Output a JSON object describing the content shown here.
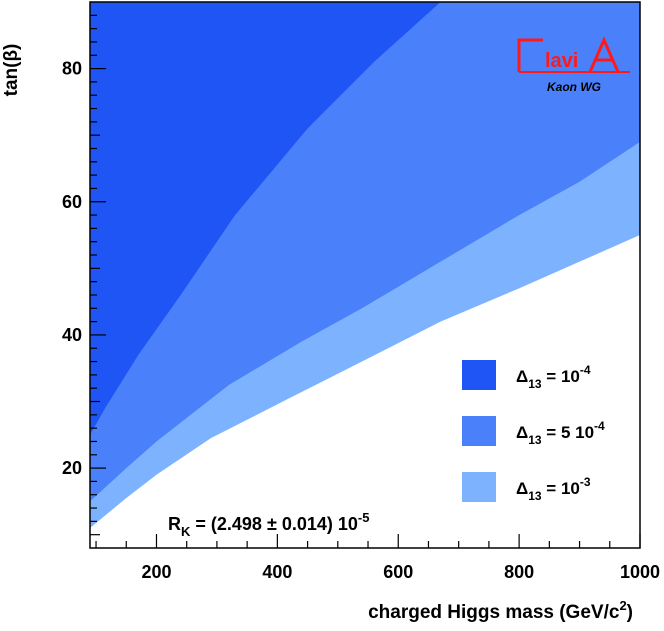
{
  "chart_data": {
    "type": "area",
    "title": "",
    "xlabel": "charged Higgs mass (GeV/c",
    "xlabel_sup": "2",
    "xlabel_tail": ")",
    "ylabel": "tan(β)",
    "xlim": [
      90,
      1000
    ],
    "ylim": [
      8,
      90
    ],
    "x_ticks": [
      200,
      400,
      600,
      800,
      1000
    ],
    "y_ticks": [
      20,
      40,
      60,
      80
    ],
    "grid": false,
    "legend_position": "bottom-right",
    "series": [
      {
        "name": "Δ13 = 10^-4",
        "color": "#1f55f5",
        "lower_boundary": {
          "x": [
            90,
            115,
            170,
            240,
            330,
            450,
            560,
            670
          ],
          "y": [
            25,
            29,
            37,
            46,
            58,
            71,
            81,
            90
          ]
        }
      },
      {
        "name": "Δ13 = 5 10^-4",
        "color": "#4a80fa",
        "lower_boundary": {
          "x": [
            90,
            150,
            200,
            320,
            440,
            540,
            670,
            800,
            900,
            1000
          ],
          "y": [
            15,
            20,
            24,
            32.5,
            39,
            44,
            51,
            58,
            63,
            69
          ]
        }
      },
      {
        "name": "Δ13 = 10^-3",
        "color": "#7db2ff",
        "lower_boundary": {
          "x": [
            90,
            150,
            200,
            290,
            420,
            540,
            670,
            800,
            900,
            1000
          ],
          "y": [
            11,
            15.5,
            19,
            24.5,
            30.5,
            36,
            42,
            47,
            51,
            55
          ]
        }
      }
    ],
    "legend": [
      {
        "prefix": "Δ",
        "sub": "13",
        "text": " = 10",
        "sup": "-4",
        "color": "#1f55f5"
      },
      {
        "prefix": "Δ",
        "sub": "13",
        "text": " = 5 10",
        "sup": "-4",
        "color": "#4a80fa"
      },
      {
        "prefix": "Δ",
        "sub": "13",
        "text": " = 10",
        "sup": "-3",
        "color": "#7db2ff"
      }
    ],
    "annotation": {
      "prefix": "R",
      "sub": "K",
      "text": " = (2.498 ± 0.014) 10",
      "sup": "-5"
    },
    "logo": {
      "text": "FlaviA",
      "subtitle": "Kaon WG",
      "color": "#ff1a1a"
    }
  }
}
